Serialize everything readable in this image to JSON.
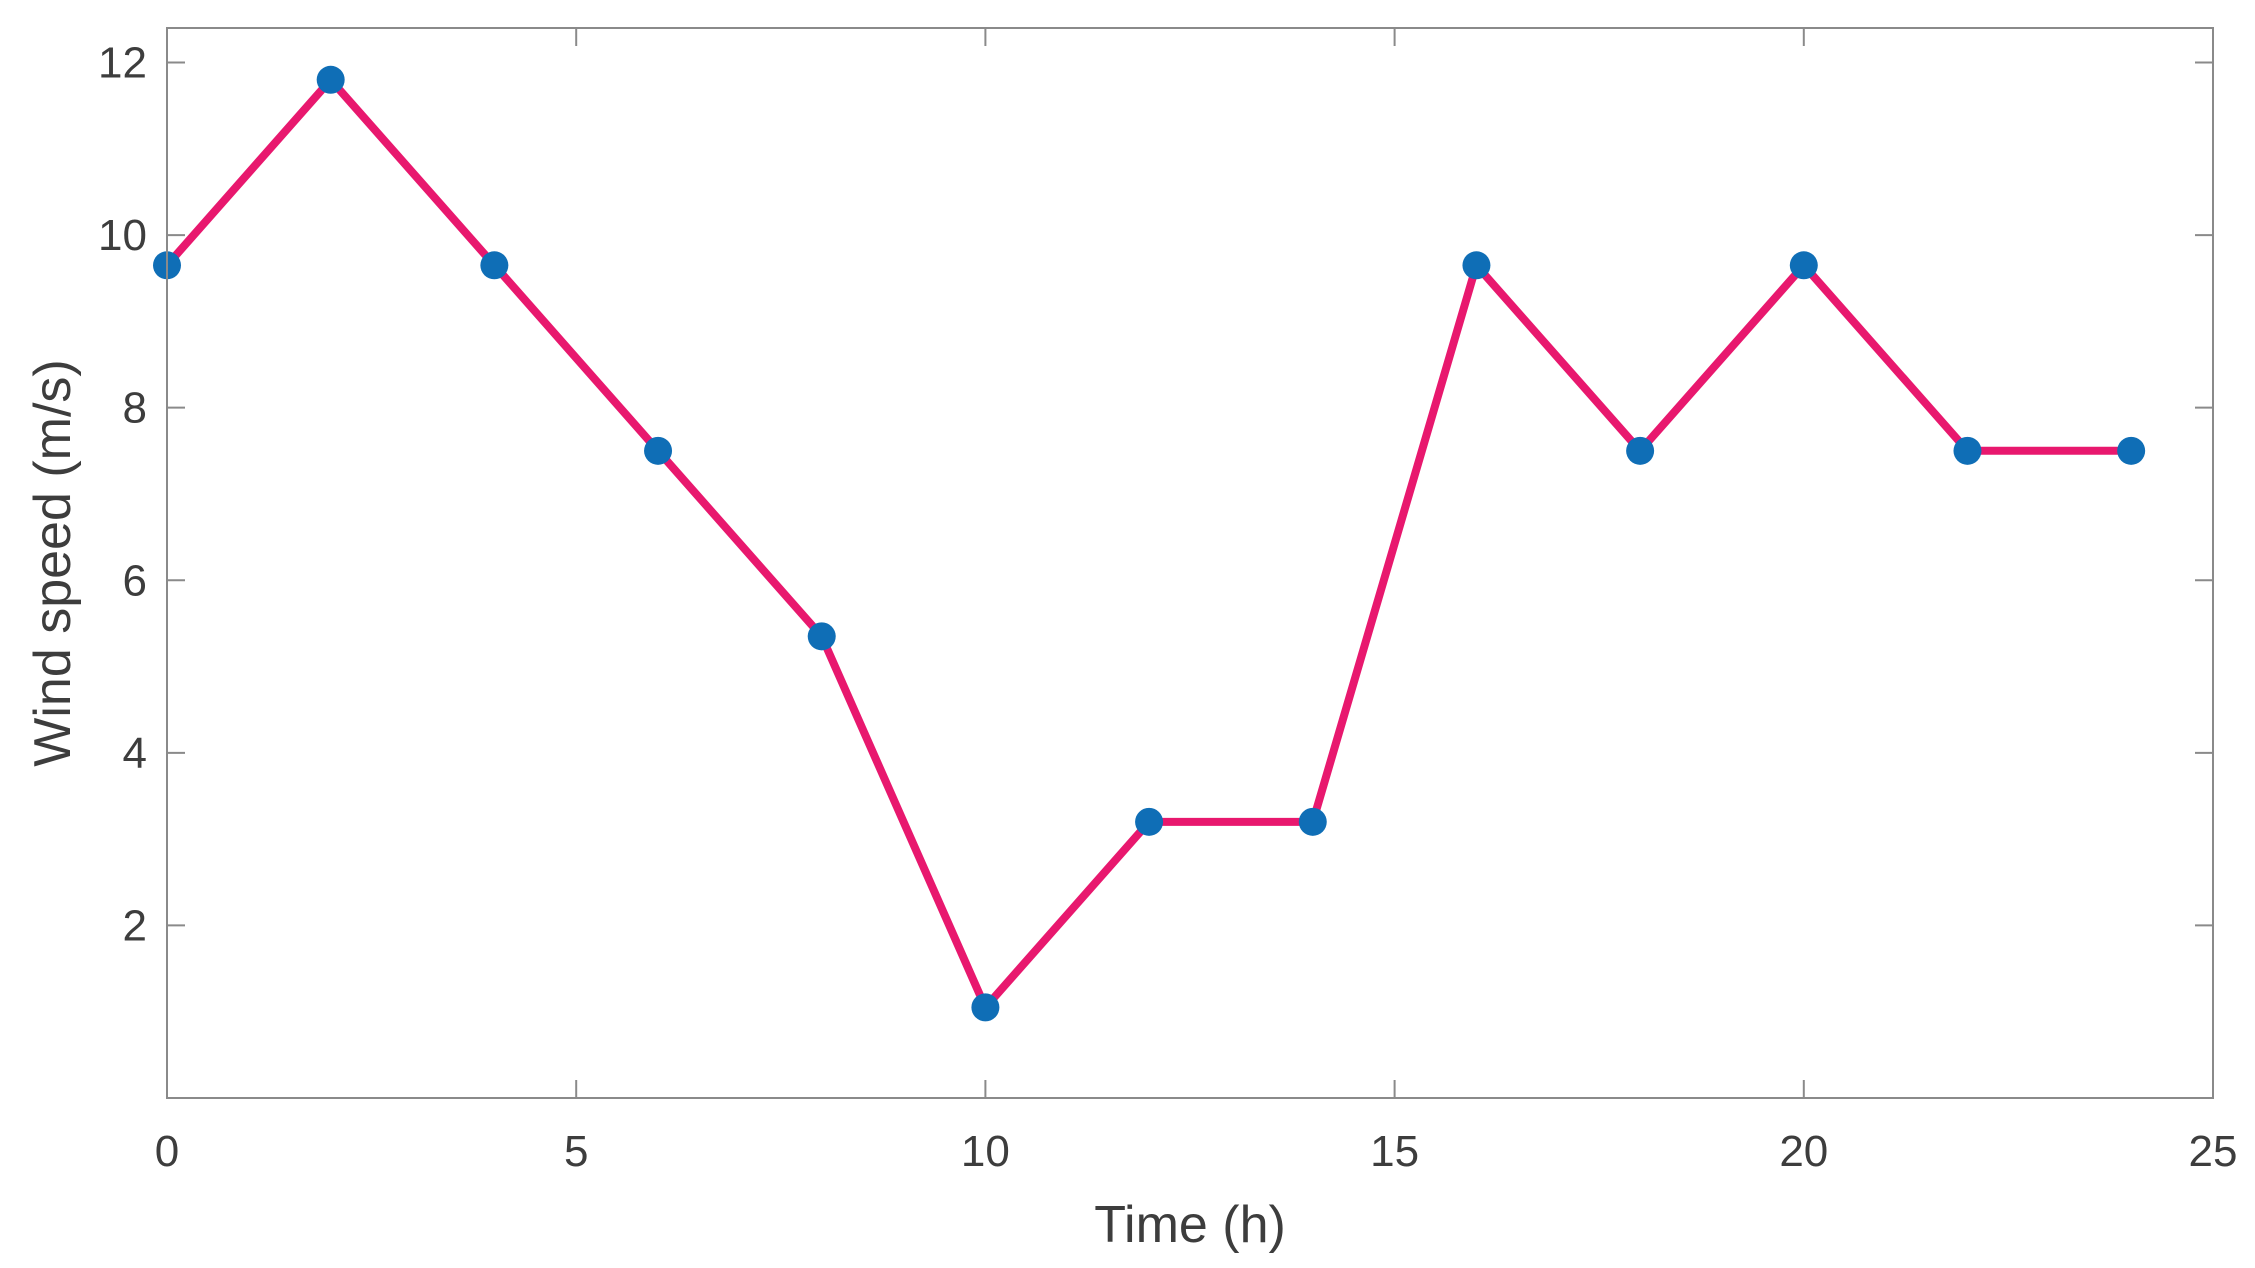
{
  "chart_data": {
    "type": "line",
    "title": "",
    "xlabel": "Time (h)",
    "ylabel": "Wind speed (m/s)",
    "xlim": [
      0,
      25
    ],
    "ylim": [
      0,
      12.4
    ],
    "xticks": [
      0,
      5,
      10,
      15,
      20,
      25
    ],
    "xtick_labels": [
      "0",
      "5",
      "10",
      "15",
      "20",
      "25"
    ],
    "yticks": [
      2,
      4,
      6,
      8,
      10,
      12
    ],
    "ytick_labels": [
      "2",
      "4",
      "6",
      "8",
      "10",
      "12"
    ],
    "grid": false,
    "box": true,
    "series": [
      {
        "x": [
          0,
          2,
          4,
          6,
          8,
          10,
          12,
          14,
          16,
          18,
          20,
          22,
          24
        ],
        "values": [
          9.65,
          11.8,
          9.65,
          7.5,
          5.35,
          1.05,
          3.2,
          3.2,
          9.65,
          7.5,
          9.65,
          7.5,
          7.5
        ],
        "line_color": "#e8186e",
        "marker_color": "#0f6eb6",
        "marker": "circle"
      }
    ]
  }
}
